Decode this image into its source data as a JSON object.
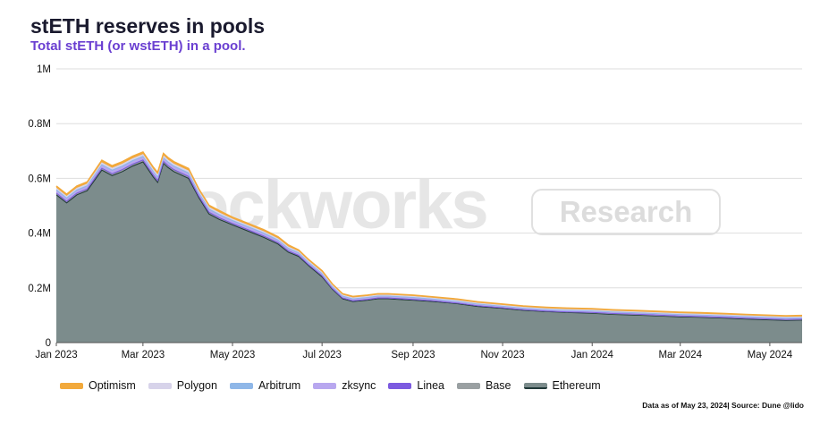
{
  "header": {
    "title": "stETH reserves in pools",
    "subtitle": "Total stETH (or wstETH) in a pool."
  },
  "watermark": {
    "brand": "Blockworks",
    "tag": "Research"
  },
  "footnote": "Data as of May 23, 2024| Source: Dune @lido",
  "colors": {
    "Optimism": "#f2a93b",
    "Polygon": "#d7d3ea",
    "Arbitrum": "#8fb7e8",
    "zksync": "#b8a7ef",
    "Linea": "#7c5ae0",
    "Base": "#9aa0a2",
    "Ethereum": "#7c8c8c",
    "Ethereum_line": "#203838",
    "grid": "#dedede"
  },
  "chart_data": {
    "type": "area",
    "stacked": true,
    "title": "stETH reserves in pools",
    "subtitle": "Total stETH (or wstETH) in a pool.",
    "xlabel": "",
    "ylabel": "",
    "x_range": [
      "2023-01-01",
      "2024-05-23"
    ],
    "ylim": [
      0,
      1000000
    ],
    "y_ticks": [
      0,
      200000,
      400000,
      600000,
      800000,
      1000000
    ],
    "y_tick_labels": [
      "0",
      "0.2M",
      "0.4M",
      "0.6M",
      "0.8M",
      "1M"
    ],
    "x_ticks": [
      "2023-01-01",
      "2023-03-01",
      "2023-05-01",
      "2023-07-01",
      "2023-09-01",
      "2023-11-01",
      "2024-01-01",
      "2024-03-01",
      "2024-05-01"
    ],
    "x_tick_labels": [
      "Jan 2023",
      "Mar 2023",
      "May 2023",
      "Jul 2023",
      "Sep 2023",
      "Nov 2023",
      "Jan 2024",
      "Mar 2024",
      "May 2024"
    ],
    "grid": true,
    "legend_position": "bottom-left",
    "series_order": [
      "Optimism",
      "Polygon",
      "Arbitrum",
      "zksync",
      "Linea",
      "Base",
      "Ethereum"
    ],
    "x": [
      "2023-01-01",
      "2023-01-08",
      "2023-01-15",
      "2023-01-22",
      "2023-02-01",
      "2023-02-08",
      "2023-02-15",
      "2023-02-22",
      "2023-03-01",
      "2023-03-08",
      "2023-03-11",
      "2023-03-15",
      "2023-03-18",
      "2023-03-22",
      "2023-04-01",
      "2023-04-08",
      "2023-04-15",
      "2023-04-22",
      "2023-05-01",
      "2023-05-08",
      "2023-05-15",
      "2023-05-22",
      "2023-06-01",
      "2023-06-08",
      "2023-06-15",
      "2023-06-22",
      "2023-07-01",
      "2023-07-08",
      "2023-07-15",
      "2023-07-22",
      "2023-08-01",
      "2023-08-08",
      "2023-08-15",
      "2023-08-22",
      "2023-09-01",
      "2023-09-15",
      "2023-10-01",
      "2023-10-15",
      "2023-11-01",
      "2023-11-15",
      "2023-12-01",
      "2023-12-15",
      "2024-01-01",
      "2024-01-15",
      "2024-02-01",
      "2024-02-15",
      "2024-03-01",
      "2024-03-15",
      "2024-04-01",
      "2024-04-15",
      "2024-05-01",
      "2024-05-12",
      "2024-05-23"
    ],
    "series": [
      {
        "name": "Ethereum",
        "values": [
          540000,
          510000,
          540000,
          555000,
          630000,
          610000,
          625000,
          645000,
          660000,
          605000,
          585000,
          655000,
          640000,
          625000,
          600000,
          530000,
          470000,
          450000,
          430000,
          415000,
          400000,
          385000,
          360000,
          330000,
          315000,
          280000,
          240000,
          195000,
          160000,
          150000,
          155000,
          160000,
          160000,
          158000,
          155000,
          150000,
          142000,
          132000,
          125000,
          118000,
          113000,
          110000,
          107000,
          103000,
          100000,
          97000,
          94000,
          92000,
          89000,
          86000,
          83000,
          81000,
          82000
        ]
      },
      {
        "name": "Base",
        "values": [
          6000,
          6000,
          6000,
          6000,
          7000,
          7000,
          7000,
          7000,
          7000,
          7000,
          7000,
          7000,
          7000,
          7000,
          7000,
          6000,
          6000,
          6000,
          5000,
          5000,
          5000,
          5000,
          5000,
          5000,
          4000,
          4000,
          4000,
          3000,
          3000,
          3000,
          3000,
          3000,
          3000,
          3000,
          3000,
          2500,
          2500,
          2500,
          2500,
          2500,
          2500,
          2500,
          2500,
          2500,
          2500,
          2500,
          2500,
          2500,
          2500,
          2500,
          2500,
          2500,
          2500
        ]
      },
      {
        "name": "Linea",
        "values": [
          0,
          0,
          0,
          0,
          0,
          0,
          0,
          0,
          0,
          0,
          0,
          0,
          0,
          0,
          0,
          0,
          0,
          0,
          0,
          0,
          0,
          0,
          0,
          0,
          0,
          0,
          0,
          0,
          0,
          0,
          0,
          0,
          0,
          0,
          0,
          0,
          0,
          0,
          0,
          0,
          0,
          0,
          1000,
          1000,
          1000,
          1000,
          1000,
          1000,
          1000,
          1000,
          1000,
          1000,
          1000
        ]
      },
      {
        "name": "zksync",
        "values": [
          8000,
          8000,
          8000,
          8000,
          9000,
          9000,
          9000,
          9000,
          9000,
          9000,
          9000,
          9000,
          9000,
          9000,
          9000,
          8000,
          8000,
          8000,
          7000,
          7000,
          7000,
          7000,
          6000,
          6000,
          6000,
          5000,
          5000,
          5000,
          4000,
          4000,
          4000,
          4000,
          4000,
          4000,
          4000,
          3500,
          3500,
          3500,
          3000,
          3000,
          3000,
          3000,
          3000,
          3000,
          3000,
          3000,
          3000,
          3000,
          3000,
          3000,
          3000,
          3000,
          3000
        ]
      },
      {
        "name": "Arbitrum",
        "values": [
          4000,
          4000,
          4000,
          4000,
          4000,
          4000,
          4000,
          4000,
          4000,
          4000,
          4000,
          4000,
          4000,
          4000,
          4000,
          4000,
          4000,
          4000,
          4000,
          4000,
          4000,
          4000,
          3500,
          3500,
          3500,
          3500,
          3500,
          3000,
          3000,
          3000,
          3000,
          3000,
          3000,
          3000,
          3000,
          3000,
          3000,
          3000,
          2500,
          2500,
          2500,
          2500,
          2500,
          2500,
          2500,
          2500,
          2500,
          2500,
          2500,
          2500,
          2500,
          2500,
          2500
        ]
      },
      {
        "name": "Polygon",
        "values": [
          6000,
          6000,
          6000,
          6000,
          7000,
          7000,
          7000,
          7000,
          7000,
          7000,
          7000,
          7000,
          7000,
          7000,
          7000,
          6000,
          6000,
          6000,
          5000,
          5000,
          5000,
          5000,
          5000,
          5000,
          4000,
          4000,
          4000,
          3500,
          3500,
          3500,
          3500,
          3500,
          3500,
          3500,
          3500,
          3000,
          3000,
          3000,
          3000,
          3000,
          3000,
          3000,
          3000,
          3000,
          3000,
          3000,
          3000,
          3000,
          3000,
          3000,
          3000,
          3000,
          3000
        ]
      },
      {
        "name": "Optimism",
        "values": [
          8000,
          8000,
          8000,
          8000,
          9000,
          9000,
          9000,
          9000,
          9000,
          9000,
          9000,
          9000,
          9000,
          9000,
          9000,
          8000,
          8000,
          8000,
          7000,
          7000,
          7000,
          7000,
          7000,
          7000,
          6000,
          6000,
          6000,
          5000,
          5000,
          5000,
          5000,
          5000,
          5000,
          5000,
          5000,
          5000,
          5000,
          5000,
          5000,
          5000,
          5000,
          5000,
          5000,
          5000,
          5000,
          5000,
          5000,
          5000,
          5000,
          5000,
          5000,
          5000,
          5000
        ]
      }
    ]
  }
}
